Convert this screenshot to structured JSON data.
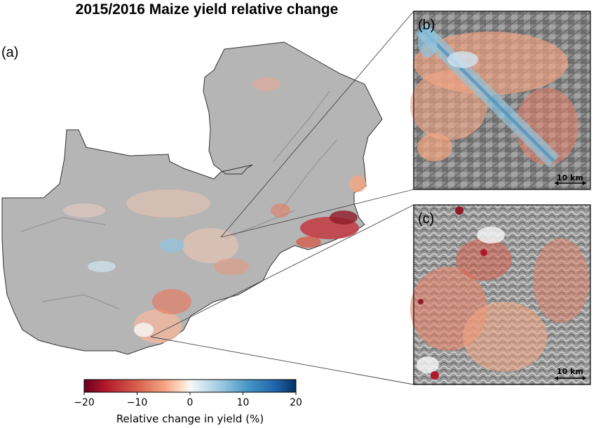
{
  "title": "2015/2016 Maize yield relative change",
  "panels": {
    "a": "(a)",
    "b": "(b)",
    "c": "(c)"
  },
  "scalebar": {
    "b": "10 km",
    "c": "10 km"
  },
  "colorbar": {
    "label": "Relative change in yield (%)",
    "ticks": [
      "−20",
      "−10",
      "0",
      "10",
      "20"
    ],
    "range": [
      -20,
      20
    ],
    "colormap": [
      "#67001f",
      "#b2182b",
      "#d6604d",
      "#f4a582",
      "#fddbc7",
      "#f7f7f7",
      "#d1e5f0",
      "#92c5de",
      "#4393c3",
      "#2166ac",
      "#053061"
    ]
  }
}
